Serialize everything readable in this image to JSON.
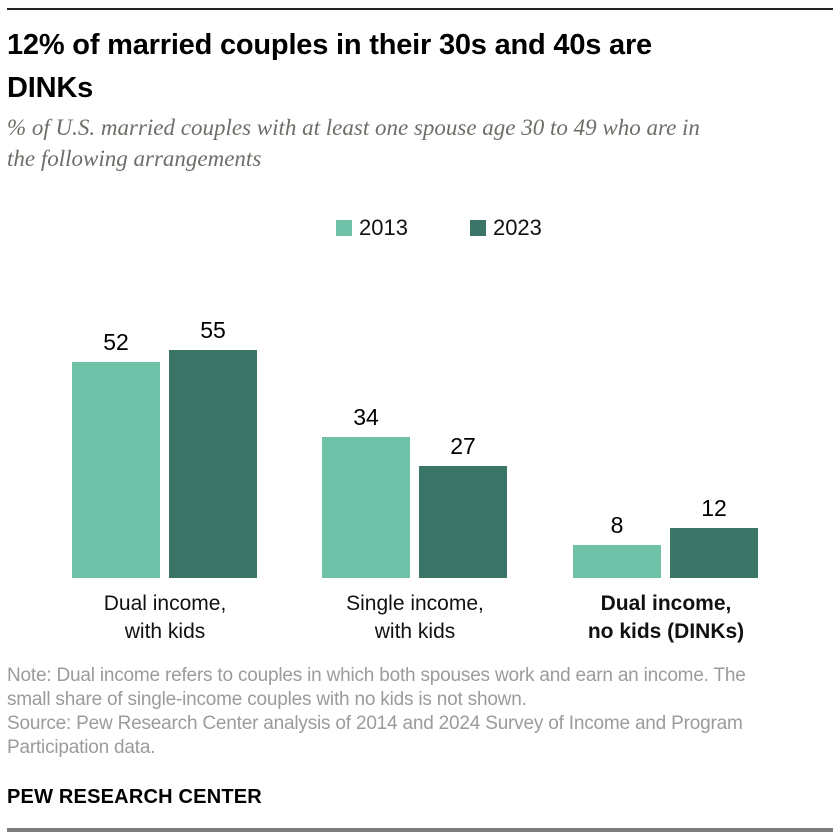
{
  "header": {
    "title_lines": [
      "12% of married couples in their 30s and 40s are",
      "DINKs"
    ],
    "subtitle_lines": [
      "% of U.S. married couples with at least one spouse age 30 to 49 who are in",
      "the following arrangements"
    ]
  },
  "chart_data": {
    "type": "bar",
    "categories": [
      "Dual income, with kids",
      "Single income, with kids",
      "Dual income, no kids (DINKs)"
    ],
    "category_lines": [
      [
        "Dual income,",
        "with kids"
      ],
      [
        "Single income,",
        "with kids"
      ],
      [
        "Dual income,",
        "no kids (DINKs)"
      ]
    ],
    "series": [
      {
        "name": "2013",
        "color": "#6FC1A8",
        "values": [
          52,
          34,
          8
        ]
      },
      {
        "name": "2023",
        "color": "#3B7568",
        "values": [
          55,
          27,
          12
        ]
      }
    ],
    "ylim": [
      0,
      60
    ],
    "grid": false,
    "axes_shown": false,
    "value_labels_shown": true,
    "legend_position": "top-center",
    "title": "12% of married couples in their 30s and 40s are DINKs",
    "subtitle": "% of U.S. married couples with at least one spouse age 30 to 49 who are in the following arrangements"
  },
  "notes": {
    "note_lines": [
      "Note: Dual income refers to couples in which both spouses work and earn an income. The",
      "small share of single-income couples with no kids is not shown."
    ],
    "source_lines": [
      "Source: Pew Research Center analysis of 2014 and 2024 Survey of Income and Program",
      "Participation data."
    ]
  },
  "footer": {
    "brand": "PEW RESEARCH CENTER"
  }
}
